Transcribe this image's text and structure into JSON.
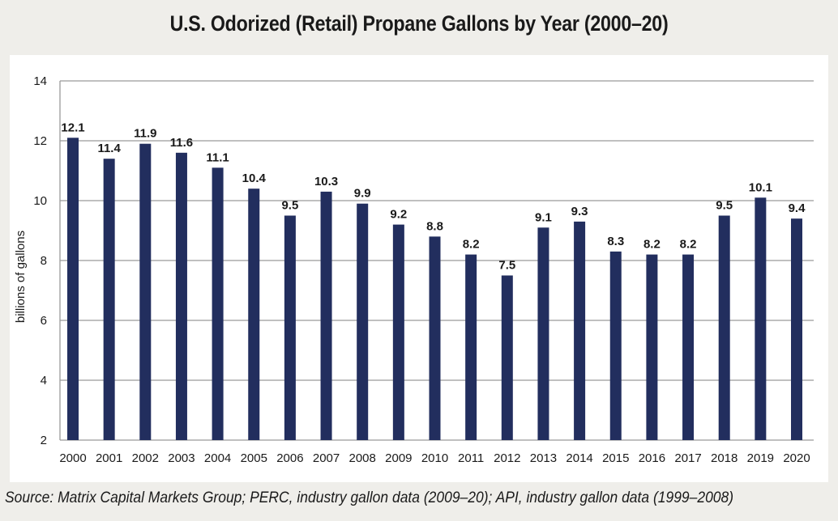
{
  "chart_data": {
    "type": "bar",
    "title": "U.S. Odorized (Retail) Propane Gallons by Year (2000–20)",
    "ylabel": "billions of gallons",
    "xlabel": "",
    "ylim": [
      2,
      14
    ],
    "yticks": [
      2,
      4,
      6,
      8,
      10,
      12,
      14
    ],
    "grid": true,
    "legend": "none",
    "bar_color": "#222e5e",
    "categories": [
      "2000",
      "2001",
      "2002",
      "2003",
      "2004",
      "2005",
      "2006",
      "2007",
      "2008",
      "2009",
      "2010",
      "2011",
      "2012",
      "2013",
      "2014",
      "2015",
      "2016",
      "2017",
      "2018",
      "2019",
      "2020"
    ],
    "values": [
      12.1,
      11.4,
      11.9,
      11.6,
      11.1,
      10.4,
      9.5,
      10.3,
      9.9,
      9.2,
      8.8,
      8.2,
      7.5,
      9.1,
      9.3,
      8.3,
      8.2,
      8.2,
      9.5,
      10.1,
      9.4
    ],
    "value_labels": [
      "12.1",
      "11.4",
      "11.9",
      "11.6",
      "11.1",
      "10.4",
      "9.5",
      "10.3",
      "9.9",
      "9.2",
      "8.8",
      "8.2",
      "7.5",
      "9.1",
      "9.3",
      "8.3",
      "8.2",
      "8.2",
      "9.5",
      "10.1",
      "9.4"
    ],
    "source": "Source: Matrix Capital Markets Group; PERC, industry gallon data (2009–20); API, industry gallon data (1999–2008)"
  }
}
